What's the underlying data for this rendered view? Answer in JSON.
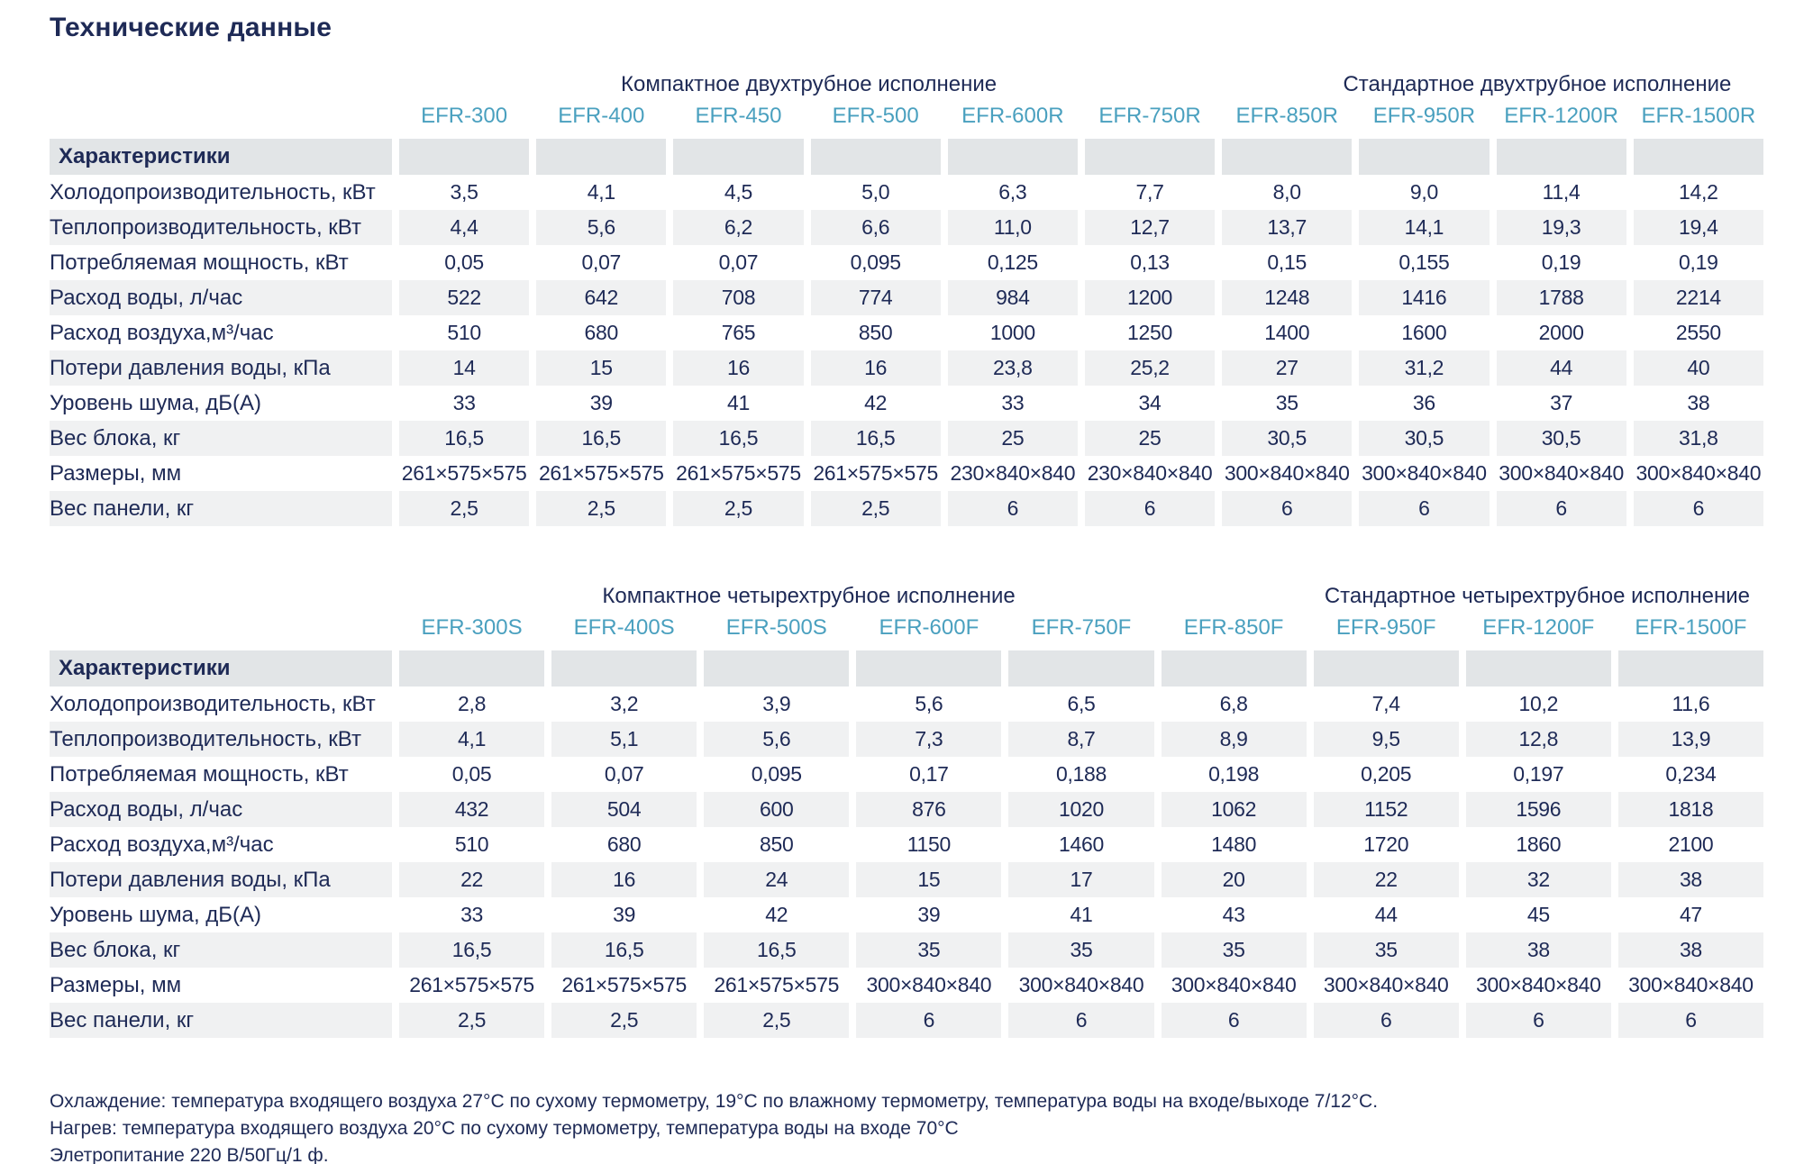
{
  "page_title": "Технические данные",
  "colors": {
    "text_navy": "#1e2a56",
    "model_header_teal": "#4aa0bf",
    "characteristics_row_gray": "#e2e5e7",
    "stripe_row_gray": "#f0f1f2",
    "background": "#ffffff"
  },
  "tables": [
    {
      "group_headers": [
        {
          "label": "Компактное двухтрубное исполнение"
        },
        {
          "label": "Стандартное двухтрубное исполнение"
        }
      ],
      "columns": [
        "EFR-300",
        "EFR-400",
        "EFR-450",
        "EFR-500",
        "EFR-600R",
        "EFR-750R",
        "EFR-850R",
        "EFR-950R",
        "EFR-1200R",
        "EFR-1500R"
      ],
      "header_label": "Характеристики",
      "rows": [
        {
          "label": "Холодопроизводительность, кВт",
          "values": [
            "3,5",
            "4,1",
            "4,5",
            "5,0",
            "6,3",
            "7,7",
            "8,0",
            "9,0",
            "11,4",
            "14,2"
          ]
        },
        {
          "label": "Теплопроизводительность, кВт",
          "values": [
            "4,4",
            "5,6",
            "6,2",
            "6,6",
            "11,0",
            "12,7",
            "13,7",
            "14,1",
            "19,3",
            "19,4"
          ]
        },
        {
          "label": "Потребляемая мощность, кВт",
          "values": [
            "0,05",
            "0,07",
            "0,07",
            "0,095",
            "0,125",
            "0,13",
            "0,15",
            "0,155",
            "0,19",
            "0,19"
          ]
        },
        {
          "label": "Расход воды, л/час",
          "values": [
            "522",
            "642",
            "708",
            "774",
            "984",
            "1200",
            "1248",
            "1416",
            "1788",
            "2214"
          ]
        },
        {
          "label": "Расход воздуха,м³/час",
          "values": [
            "510",
            "680",
            "765",
            "850",
            "1000",
            "1250",
            "1400",
            "1600",
            "2000",
            "2550"
          ]
        },
        {
          "label": "Потери давления воды, кПа",
          "values": [
            "14",
            "15",
            "16",
            "16",
            "23,8",
            "25,2",
            "27",
            "31,2",
            "44",
            "40"
          ]
        },
        {
          "label": "Уровень шума, дБ(А)",
          "values": [
            "33",
            "39",
            "41",
            "42",
            "33",
            "34",
            "35",
            "36",
            "37",
            "38"
          ]
        },
        {
          "label": "Вес блока, кг",
          "values": [
            "16,5",
            "16,5",
            "16,5",
            "16,5",
            "25",
            "25",
            "30,5",
            "30,5",
            "30,5",
            "31,8"
          ]
        },
        {
          "label": "Размеры, мм",
          "values": [
            "261×575×575",
            "261×575×575",
            "261×575×575",
            "261×575×575",
            "230×840×840",
            "230×840×840",
            "300×840×840",
            "300×840×840",
            "300×840×840",
            "300×840×840"
          ]
        },
        {
          "label": "Вес панели, кг",
          "values": [
            "2,5",
            "2,5",
            "2,5",
            "2,5",
            "6",
            "6",
            "6",
            "6",
            "6",
            "6"
          ]
        }
      ]
    },
    {
      "group_headers": [
        {
          "label": "Компактное четырехтрубное исполнение"
        },
        {
          "label": "Стандартное четырехтрубное исполнение"
        }
      ],
      "columns": [
        "EFR-300S",
        "EFR-400S",
        "EFR-500S",
        "EFR-600F",
        "EFR-750F",
        "EFR-850F",
        "EFR-950F",
        "EFR-1200F",
        "EFR-1500F"
      ],
      "header_label": "Характеристики",
      "rows": [
        {
          "label": "Холодопроизводительность, кВт",
          "values": [
            "2,8",
            "3,2",
            "3,9",
            "5,6",
            "6,5",
            "6,8",
            "7,4",
            "10,2",
            "11,6"
          ]
        },
        {
          "label": "Теплопроизводительность, кВт",
          "values": [
            "4,1",
            "5,1",
            "5,6",
            "7,3",
            "8,7",
            "8,9",
            "9,5",
            "12,8",
            "13,9"
          ]
        },
        {
          "label": "Потребляемая мощность, кВт",
          "values": [
            "0,05",
            "0,07",
            "0,095",
            "0,17",
            "0,188",
            "0,198",
            "0,205",
            "0,197",
            "0,234"
          ]
        },
        {
          "label": "Расход воды, л/час",
          "values": [
            "432",
            "504",
            "600",
            "876",
            "1020",
            "1062",
            "1152",
            "1596",
            "1818"
          ]
        },
        {
          "label": "Расход воздуха,м³/час",
          "values": [
            "510",
            "680",
            "850",
            "1150",
            "1460",
            "1480",
            "1720",
            "1860",
            "2100"
          ]
        },
        {
          "label": "Потери давления воды, кПа",
          "values": [
            "22",
            "16",
            "24",
            "15",
            "17",
            "20",
            "22",
            "32",
            "38"
          ]
        },
        {
          "label": "Уровень шума, дБ(А)",
          "values": [
            "33",
            "39",
            "42",
            "39",
            "41",
            "43",
            "44",
            "45",
            "47"
          ]
        },
        {
          "label": "Вес блока, кг",
          "values": [
            "16,5",
            "16,5",
            "16,5",
            "35",
            "35",
            "35",
            "35",
            "38",
            "38"
          ]
        },
        {
          "label": "Размеры, мм",
          "values": [
            "261×575×575",
            "261×575×575",
            "261×575×575",
            "300×840×840",
            "300×840×840",
            "300×840×840",
            "300×840×840",
            "300×840×840",
            "300×840×840"
          ]
        },
        {
          "label": "Вес панели, кг",
          "values": [
            "2,5",
            "2,5",
            "2,5",
            "6",
            "6",
            "6",
            "6",
            "6",
            "6"
          ]
        }
      ]
    }
  ],
  "footnotes": [
    "Охлаждение: температура входящего воздуха 27°С по сухому термометру, 19°С по влажному термометру, температура воды на входе/выходе 7/12°С.",
    "Нагрев: температура входящего воздуха 20°С по сухому термометру, температура воды на входе 70°С",
    "Элетропитание 220 В/50Гц/1 ф."
  ]
}
